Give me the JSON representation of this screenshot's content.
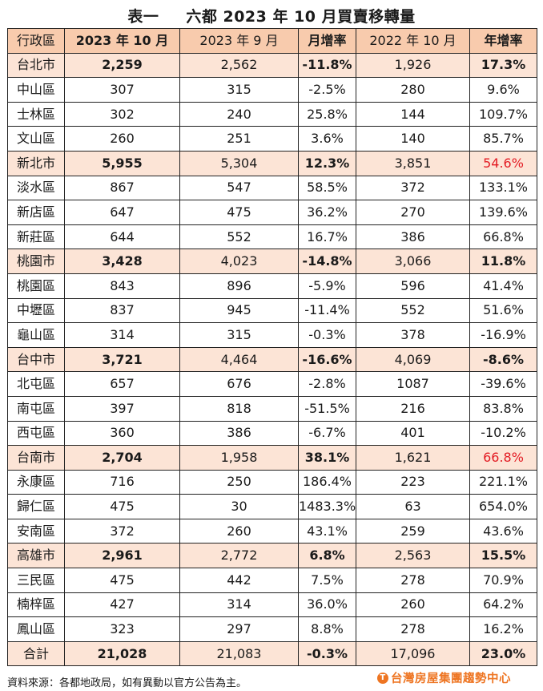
{
  "title": {
    "label": "表一",
    "text": "六都 2023 年 10 月買賣移轉量"
  },
  "table": {
    "headers": [
      "行政區",
      "2023 年 10 月",
      "2023 年 9 月",
      "月增率",
      "2022 年 10 月",
      "年增率"
    ],
    "rows": [
      {
        "type": "city",
        "cells": [
          "台北市",
          "2,259",
          "2,562",
          "-11.8%",
          "1,926",
          "17.3%"
        ]
      },
      {
        "type": "district",
        "cells": [
          "中山區",
          "307",
          "315",
          "-2.5%",
          "280",
          "9.6%"
        ]
      },
      {
        "type": "district",
        "cells": [
          "士林區",
          "302",
          "240",
          "25.8%",
          "144",
          "109.7%"
        ]
      },
      {
        "type": "district",
        "cells": [
          "文山區",
          "260",
          "251",
          "3.6%",
          "140",
          "85.7%"
        ]
      },
      {
        "type": "city",
        "cells": [
          "新北市",
          "5,955",
          "5,304",
          "12.3%",
          "3,851",
          "54.6%"
        ]
      },
      {
        "type": "district",
        "cells": [
          "淡水區",
          "867",
          "547",
          "58.5%",
          "372",
          "133.1%"
        ]
      },
      {
        "type": "district",
        "cells": [
          "新店區",
          "647",
          "475",
          "36.2%",
          "270",
          "139.6%"
        ]
      },
      {
        "type": "district",
        "cells": [
          "新莊區",
          "644",
          "552",
          "16.7%",
          "386",
          "66.8%"
        ]
      },
      {
        "type": "city",
        "cells": [
          "桃園市",
          "3,428",
          "4,023",
          "-14.8%",
          "3,066",
          "11.8%"
        ]
      },
      {
        "type": "district",
        "cells": [
          "桃園區",
          "843",
          "896",
          "-5.9%",
          "596",
          "41.4%"
        ]
      },
      {
        "type": "district",
        "cells": [
          "中壢區",
          "837",
          "945",
          "-11.4%",
          "552",
          "51.6%"
        ]
      },
      {
        "type": "district",
        "cells": [
          "龜山區",
          "314",
          "315",
          "-0.3%",
          "378",
          "-16.9%"
        ]
      },
      {
        "type": "city",
        "cells": [
          "台中市",
          "3,721",
          "4,464",
          "-16.6%",
          "4,069",
          "-8.6%"
        ]
      },
      {
        "type": "district",
        "cells": [
          "北屯區",
          "657",
          "676",
          "-2.8%",
          "1087",
          "-39.6%"
        ]
      },
      {
        "type": "district",
        "cells": [
          "南屯區",
          "397",
          "818",
          "-51.5%",
          "216",
          "83.8%"
        ]
      },
      {
        "type": "district",
        "cells": [
          "西屯區",
          "360",
          "386",
          "-6.7%",
          "401",
          "-10.2%"
        ]
      },
      {
        "type": "city",
        "cells": [
          "台南市",
          "2,704",
          "1,958",
          "38.1%",
          "1,621",
          "66.8%"
        ]
      },
      {
        "type": "district",
        "cells": [
          "永康區",
          "716",
          "250",
          "186.4%",
          "223",
          "221.1%"
        ]
      },
      {
        "type": "district",
        "cells": [
          "歸仁區",
          "475",
          "30",
          "1483.3%",
          "63",
          "654.0%"
        ]
      },
      {
        "type": "district",
        "cells": [
          "安南區",
          "372",
          "260",
          "43.1%",
          "259",
          "43.6%"
        ]
      },
      {
        "type": "city",
        "cells": [
          "高雄市",
          "2,961",
          "2,772",
          "6.8%",
          "2,563",
          "15.5%"
        ]
      },
      {
        "type": "district",
        "cells": [
          "三民區",
          "475",
          "442",
          "7.5%",
          "278",
          "70.9%"
        ]
      },
      {
        "type": "district",
        "cells": [
          "楠梓區",
          "427",
          "314",
          "36.0%",
          "260",
          "64.2%"
        ]
      },
      {
        "type": "district",
        "cells": [
          "鳳山區",
          "323",
          "297",
          "8.8%",
          "278",
          "16.2%"
        ]
      },
      {
        "type": "total",
        "cells": [
          "合計",
          "21,028",
          "21,083",
          "-0.3%",
          "17,096",
          "23.0%"
        ]
      }
    ],
    "highlight_color": "#e31b23",
    "header_fill": "#f8cbad",
    "city_fill": "#fce4d6"
  },
  "footnote": "資料來源：各都地政局，如有異動以官方公告為主。",
  "logo": {
    "icon": "taiwan-realty-logo-icon",
    "text": "台灣房屋集團趨勢中心",
    "color": "#ee7522"
  }
}
